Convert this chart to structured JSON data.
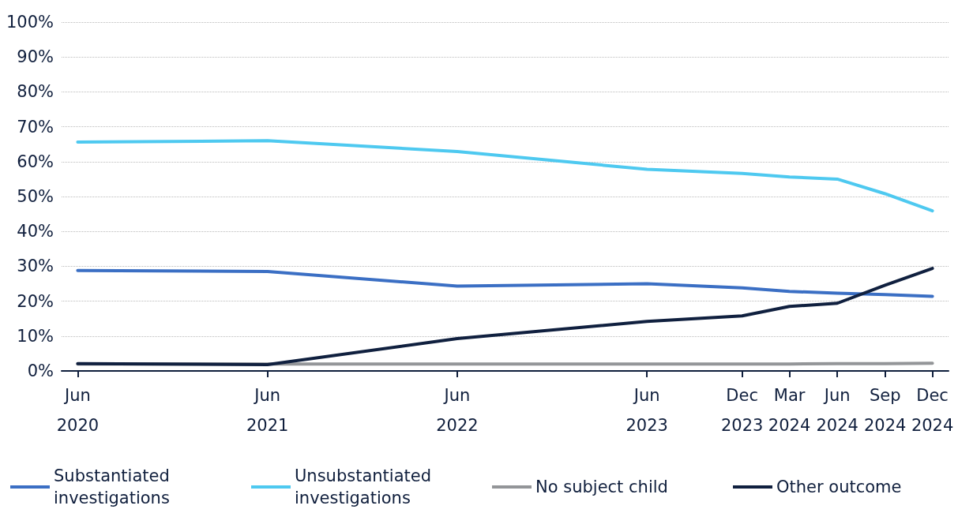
{
  "chart_data": {
    "type": "line",
    "x": [
      "2020-06",
      "2021-06",
      "2022-06",
      "2023-06",
      "2023-12",
      "2024-03",
      "2024-06",
      "2024-09",
      "2024-12"
    ],
    "series": [
      {
        "name": "Substantiated investigations",
        "color": "#3b6fc4",
        "values": [
          28.8,
          28.5,
          24.3,
          25,
          23.8,
          22.8,
          22.3,
          21.9,
          21.4
        ]
      },
      {
        "name": "Unsubstantiated investigations",
        "color": "#4ec9f0",
        "values": [
          65.6,
          66,
          62.9,
          57.8,
          56.6,
          55.6,
          55,
          50.8,
          45.9
        ]
      },
      {
        "name": "No subject child",
        "color": "#939598",
        "values": [
          2,
          2,
          2,
          2,
          2,
          2,
          2.1,
          2.1,
          2.2
        ]
      },
      {
        "name": "Other outcome",
        "color": "#10203f",
        "values": [
          2.1,
          1.8,
          9.3,
          14.2,
          15.8,
          18.5,
          19.4,
          24.6,
          29.4
        ]
      }
    ],
    "xlim": [
      "2020-05-01",
      "2025-01-01"
    ],
    "xticks": [
      {
        "value": "2020-06",
        "label": "Jun 2020"
      },
      {
        "value": "2021-06",
        "label": "Jun 2021"
      },
      {
        "value": "2022-06",
        "label": "Jun 2022"
      },
      {
        "value": "2023-06",
        "label": "Jun 2023"
      },
      {
        "value": "2023-12",
        "label": "Dec 2023"
      },
      {
        "value": "2024-03",
        "label": "Mar 2024"
      },
      {
        "value": "2024-06",
        "label": "Jun 2024"
      },
      {
        "value": "2024-09",
        "label": "Sep 2024"
      },
      {
        "value": "2024-12",
        "label": "Dec 2024"
      }
    ],
    "ylim": [
      0,
      100
    ],
    "yticks": [
      {
        "value": 0,
        "label": "0%"
      },
      {
        "value": 10,
        "label": "10%"
      },
      {
        "value": 20,
        "label": "20%"
      },
      {
        "value": 30,
        "label": "30%"
      },
      {
        "value": 40,
        "label": "40%"
      },
      {
        "value": 50,
        "label": "50%"
      },
      {
        "value": 60,
        "label": "60%"
      },
      {
        "value": 70,
        "label": "70%"
      },
      {
        "value": 80,
        "label": "80%"
      },
      {
        "value": 90,
        "label": "90%"
      },
      {
        "value": 100,
        "label": "100%"
      }
    ],
    "grid": "y",
    "legend": "bottom",
    "marker": "none",
    "line_style": "solid"
  }
}
